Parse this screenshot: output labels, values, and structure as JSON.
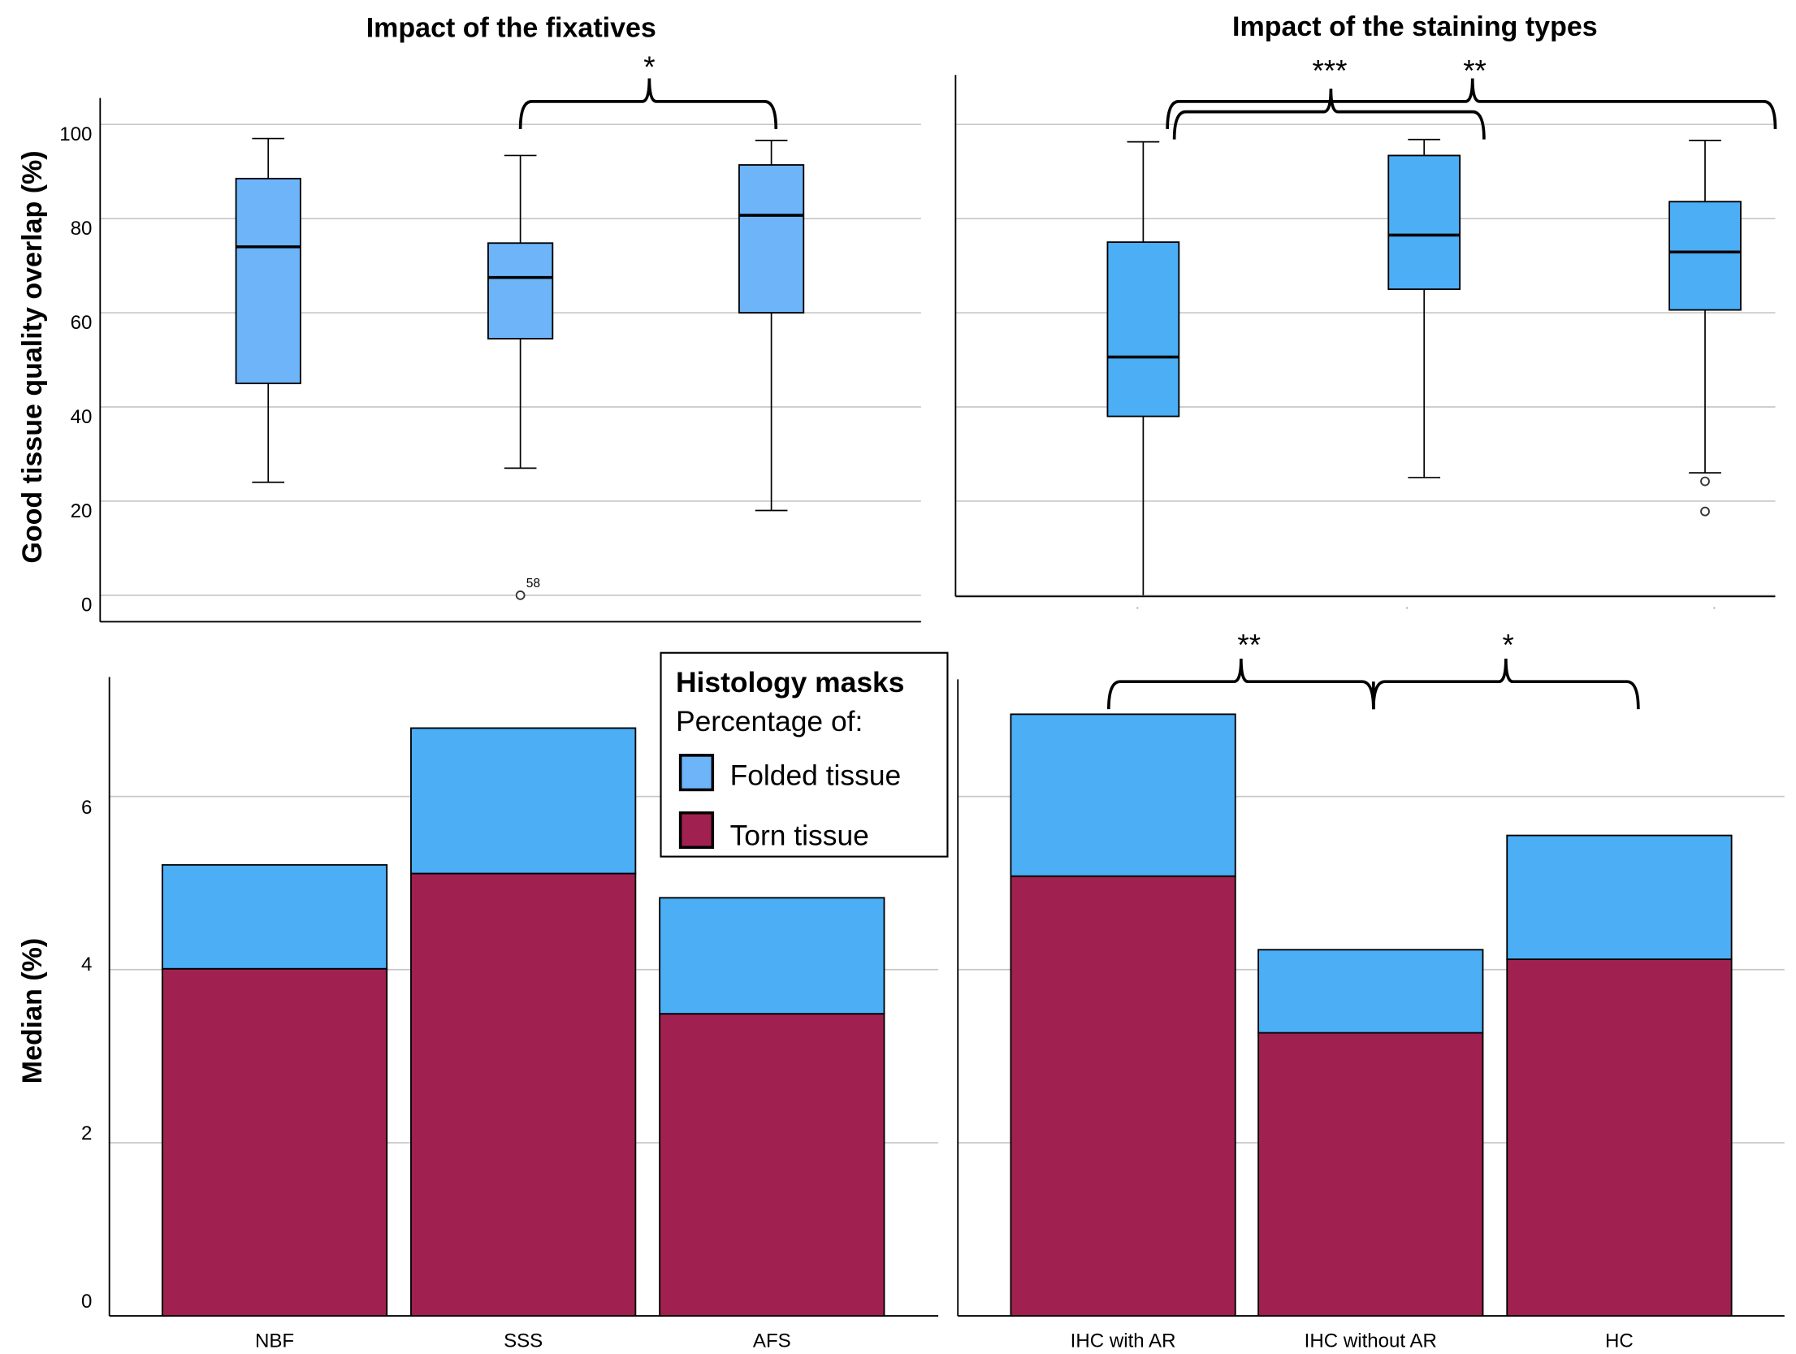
{
  "colors": {
    "box_fixatives": "#6db4f8",
    "box_staining": "#4caef5",
    "folded": "#4caef5",
    "torn": "#a0214f"
  },
  "legend": {
    "title": "Histology masks",
    "subtitle": "Percentage of:",
    "items": [
      "Folded tissue",
      "Torn tissue"
    ]
  },
  "chart_data": [
    {
      "type": "boxplot",
      "title": "Impact of the fixatives",
      "ylabel": "Good tissue quality overlap (%)",
      "ylim": [
        -5,
        105
      ],
      "yticks": [
        "0",
        "20",
        "40",
        "60",
        "80",
        "100"
      ],
      "grid": true,
      "categories": [
        "NBF",
        "SSS",
        "AFS"
      ],
      "boxes": [
        {
          "min": 24,
          "q1": 45,
          "median": 74,
          "q3": 88.5,
          "max": 97,
          "outliers": []
        },
        {
          "min": 27,
          "q1": 54.5,
          "median": 67.5,
          "q3": 74.8,
          "max": 93.4,
          "outliers": [
            {
              "value": 0,
              "label": "58"
            }
          ]
        },
        {
          "min": 18,
          "q1": 60,
          "median": 80.7,
          "q3": 91.4,
          "max": 96.6,
          "outliers": []
        }
      ],
      "significance": [
        {
          "from": "SSS",
          "to": "AFS",
          "label": "*"
        }
      ]
    },
    {
      "type": "boxplot",
      "title": "Impact of the staining types",
      "ylim": [
        0,
        110
      ],
      "grid": true,
      "categories": [
        "IHC with AR",
        "IHC without AR",
        "HC"
      ],
      "boxes": [
        {
          "min": 0,
          "q1": 38,
          "median": 50.6,
          "q3": 75,
          "max": 96.3,
          "outliers": []
        },
        {
          "min": 25,
          "q1": 65,
          "median": 76.5,
          "q3": 93.4,
          "max": 96.8,
          "outliers": []
        },
        {
          "min": 26,
          "q1": 60.6,
          "median": 72.9,
          "q3": 83.6,
          "max": 96.6,
          "outliers": [
            {
              "value": 24.2
            },
            {
              "value": 17.8
            }
          ]
        }
      ],
      "significance": [
        {
          "from": "IHC with AR",
          "to": "IHC without AR",
          "label": "***"
        },
        {
          "from": "IHC with AR",
          "to": "HC",
          "label": "**"
        }
      ]
    },
    {
      "type": "bar",
      "stacked": true,
      "ylabel": "Median (%)",
      "ylim": [
        0,
        7.4
      ],
      "yticks": [
        "0",
        "2",
        "4",
        "6"
      ],
      "grid": true,
      "categories": [
        "NBF",
        "SSS",
        "AFS"
      ],
      "series": [
        {
          "name": "Torn tissue",
          "values": [
            4.01,
            5.11,
            3.49
          ]
        },
        {
          "name": "Folded tissue",
          "values": [
            1.2,
            1.68,
            1.34
          ]
        }
      ]
    },
    {
      "type": "bar",
      "stacked": true,
      "ylim": [
        0,
        7.4
      ],
      "grid": true,
      "categories": [
        "IHC with AR",
        "IHC without AR",
        "HC"
      ],
      "series": [
        {
          "name": "Torn tissue",
          "values": [
            5.08,
            3.27,
            4.12
          ]
        },
        {
          "name": "Folded tissue",
          "values": [
            1.87,
            0.96,
            1.43
          ]
        }
      ],
      "significance": [
        {
          "from": "IHC with AR",
          "to": "IHC without AR",
          "label": "**"
        },
        {
          "from": "IHC without AR",
          "to": "HC",
          "label": "*"
        }
      ]
    }
  ]
}
